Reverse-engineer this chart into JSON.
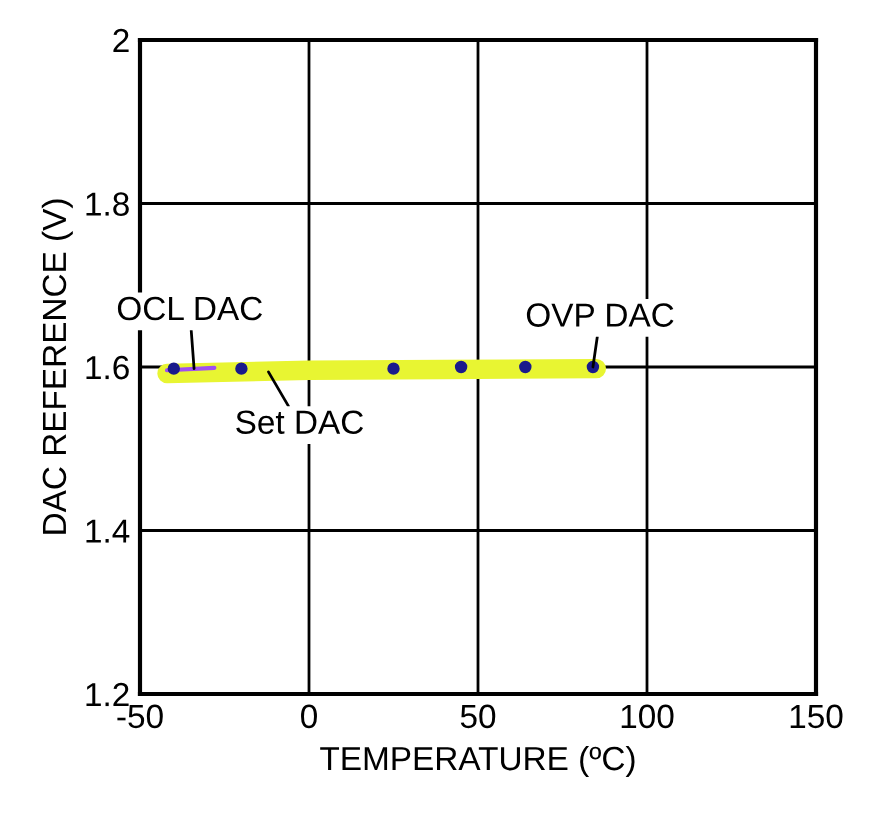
{
  "chart_data": {
    "type": "line",
    "xlabel": "TEMPERATURE (ºC)",
    "ylabel": "DAC REFERENCE (V)",
    "xlim": [
      -50,
      150
    ],
    "xticks": [
      -50,
      0,
      50,
      100,
      150
    ],
    "ylim": [
      1.2,
      2.0
    ],
    "yticks": [
      1.2,
      1.4,
      1.6,
      1.8,
      2
    ],
    "grid": true,
    "series": [
      {
        "color": "#e8f532",
        "x": [
          -42,
          0,
          40,
          85
        ],
        "values": [
          1.592,
          1.596,
          1.597,
          1.598
        ]
      },
      {
        "color": "#a050f0",
        "x": [
          -42,
          -28
        ],
        "values": [
          1.596,
          1.599
        ]
      },
      {
        "type": "scatter",
        "color": "#1a1a8c",
        "x": [
          -40,
          -20,
          25,
          45,
          64,
          84
        ],
        "values": [
          1.598,
          1.598,
          1.598,
          1.6,
          1.6,
          1.6
        ]
      }
    ],
    "annotations": [
      {
        "text": "OCL DAC",
        "x": -34,
        "y": 1.598
      },
      {
        "text": "Set DAC",
        "x": -12,
        "y": 1.594
      },
      {
        "text": "OVP DAC",
        "x": 84,
        "y": 1.6
      }
    ]
  }
}
